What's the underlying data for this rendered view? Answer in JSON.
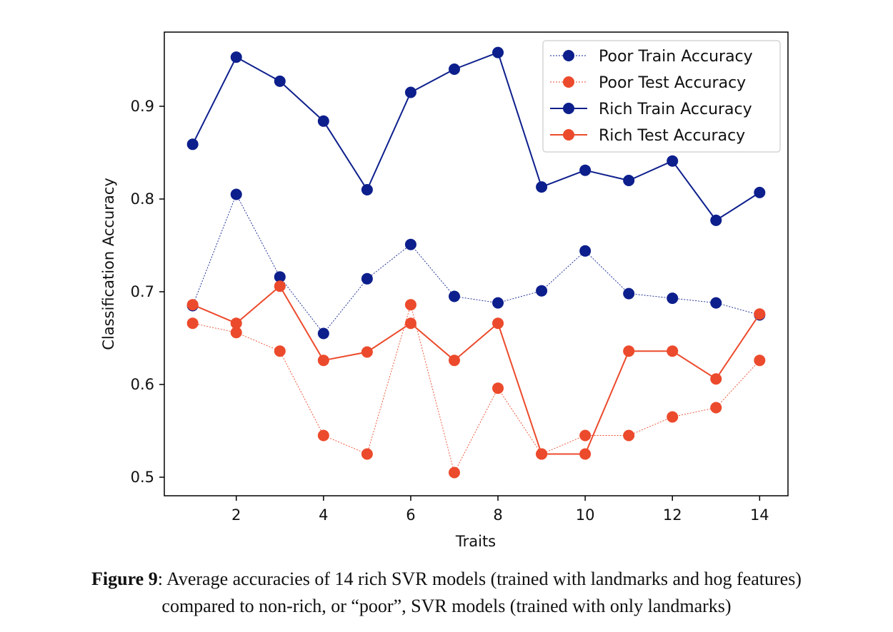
{
  "chart_data": {
    "type": "line",
    "title": "",
    "xlabel": "Traits",
    "ylabel": "Classification Accuracy",
    "xlim": [
      0.35,
      14.65
    ],
    "ylim": [
      0.48,
      0.98
    ],
    "xticks": [
      2,
      4,
      6,
      8,
      10,
      12,
      14
    ],
    "yticks": [
      0.5,
      0.6,
      0.7,
      0.8,
      0.9
    ],
    "ytick_labels": [
      "0.5",
      "0.6",
      "0.7",
      "0.8",
      "0.9"
    ],
    "xtick_labels": [
      "2",
      "4",
      "6",
      "8",
      "10",
      "12",
      "14"
    ],
    "grid": false,
    "legend_position": "top-right",
    "x": [
      1,
      2,
      3,
      4,
      5,
      6,
      7,
      8,
      9,
      10,
      11,
      12,
      13,
      14
    ],
    "series": [
      {
        "name": "Poor Train Accuracy",
        "color": "#0d1f8c",
        "style": "dotted-thin",
        "values": [
          0.685,
          0.805,
          0.716,
          0.655,
          0.714,
          0.751,
          0.695,
          0.688,
          0.701,
          0.744,
          0.698,
          0.693,
          0.688,
          0.675
        ]
      },
      {
        "name": "Poor Test Accuracy",
        "color": "#ec4a2c",
        "style": "dotted-thin",
        "values": [
          0.666,
          0.656,
          0.636,
          0.545,
          0.525,
          0.686,
          0.505,
          0.596,
          0.525,
          0.545,
          0.545,
          0.565,
          0.575,
          0.626
        ]
      },
      {
        "name": "Rich Train Accuracy",
        "color": "#0d1f8c",
        "style": "solid",
        "values": [
          0.859,
          0.953,
          0.927,
          0.884,
          0.81,
          0.915,
          0.94,
          0.958,
          0.813,
          0.831,
          0.82,
          0.841,
          0.777,
          0.807
        ]
      },
      {
        "name": "Rich Test Accuracy",
        "color": "#ec4a2c",
        "style": "solid",
        "values": [
          0.686,
          0.666,
          0.706,
          0.626,
          0.635,
          0.666,
          0.626,
          0.666,
          0.525,
          0.525,
          0.636,
          0.636,
          0.606,
          0.676
        ]
      }
    ]
  },
  "caption": {
    "figure_label": "Figure 9",
    "line1_rest": ": Average accuracies of 14 rich SVR models (trained with landmarks and hog features)",
    "line2": "compared to non-rich, or “poor”, SVR models (trained with only landmarks)"
  }
}
